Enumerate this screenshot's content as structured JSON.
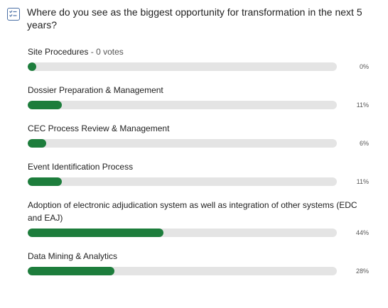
{
  "poll": {
    "question": "Where do you see as the biggest opportunity for transformation in the next 5 years?",
    "icon": "poll-checklist-icon",
    "accent_color": "#1d7d3c",
    "options": [
      {
        "label": "Site Procedures",
        "votes": "- 0 votes",
        "percent_text": "0%",
        "percent": 0
      },
      {
        "label": "Dossier Preparation & Management",
        "votes": "",
        "percent_text": "11%",
        "percent": 11
      },
      {
        "label": "CEC Process Review & Management",
        "votes": "",
        "percent_text": "6%",
        "percent": 6
      },
      {
        "label": "Event Identification Process",
        "votes": "",
        "percent_text": "11%",
        "percent": 11
      },
      {
        "label": "Adoption of electronic adjudication system as well as integration of other systems (EDC and EAJ)",
        "votes": "",
        "percent_text": "44%",
        "percent": 44
      },
      {
        "label": "Data Mining & Analytics",
        "votes": "",
        "percent_text": "28%",
        "percent": 28
      }
    ]
  }
}
